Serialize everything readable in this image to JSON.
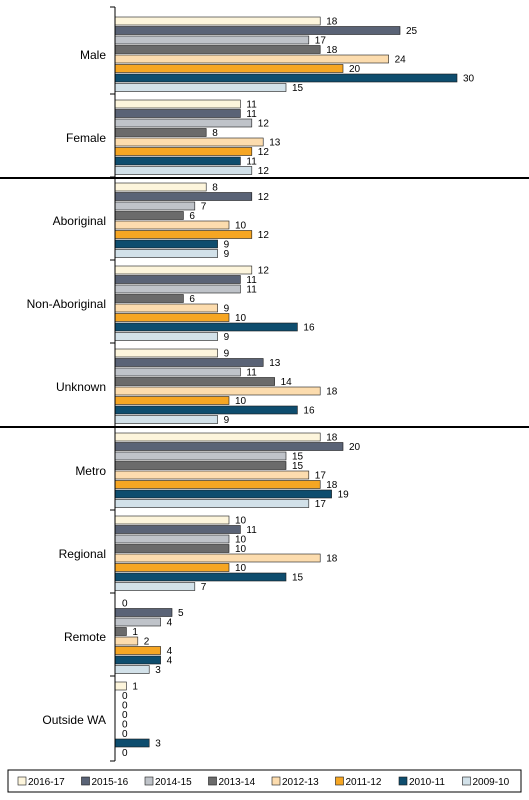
{
  "chart_data": {
    "type": "bar",
    "orientation": "horizontal",
    "title": "",
    "xlabel": "",
    "ylabel": "",
    "xlim": [
      0,
      30
    ],
    "grid": false,
    "legend_position": "bottom",
    "series": [
      {
        "name": "2016-17",
        "color": "#FDF5DC",
        "values": [
          18,
          11,
          8,
          12,
          9,
          18,
          10,
          0,
          1
        ]
      },
      {
        "name": "2015-16",
        "color": "#5A6376",
        "values": [
          25,
          11,
          12,
          11,
          13,
          20,
          11,
          5,
          0
        ]
      },
      {
        "name": "2014-15",
        "color": "#BFC3C9",
        "values": [
          17,
          12,
          7,
          11,
          11,
          15,
          10,
          4,
          0
        ]
      },
      {
        "name": "2013-14",
        "color": "#6B6B6B",
        "values": [
          18,
          8,
          6,
          6,
          14,
          15,
          10,
          1,
          0
        ]
      },
      {
        "name": "2012-13",
        "color": "#FCDCAE",
        "values": [
          24,
          13,
          10,
          9,
          18,
          17,
          18,
          2,
          0
        ]
      },
      {
        "name": "2011-12",
        "color": "#F6A623",
        "values": [
          20,
          12,
          12,
          10,
          10,
          18,
          10,
          4,
          0
        ]
      },
      {
        "name": "2010-11",
        "color": "#0E4D6E",
        "values": [
          30,
          11,
          9,
          16,
          16,
          19,
          15,
          4,
          3
        ]
      },
      {
        "name": "2009-10",
        "color": "#D2E1E9",
        "values": [
          15,
          12,
          9,
          9,
          9,
          17,
          7,
          3,
          0
        ]
      }
    ],
    "groups": [
      {
        "categories": [
          "Male",
          "Female"
        ]
      },
      {
        "categories": [
          "Aboriginal",
          "Non-Aboriginal",
          "Unknown"
        ]
      },
      {
        "categories": [
          "Metro",
          "Regional",
          "Remote",
          "Outside WA"
        ]
      }
    ],
    "categories": [
      "Male",
      "Female",
      "Aboriginal",
      "Non-Aboriginal",
      "Unknown",
      "Metro",
      "Regional",
      "Remote",
      "Outside WA"
    ]
  }
}
